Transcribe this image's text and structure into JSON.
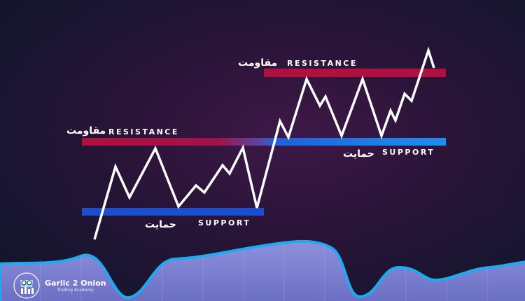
{
  "labels": {
    "resistance_left": "RESISTANCE",
    "resistance_left_ar": "مقاومت",
    "support_left": "SUPPORT",
    "support_left_ar": "حمایت",
    "resistance_right": "RESISTANCE",
    "resistance_right_ar": "مقاومت",
    "support_right": "SUPPORT",
    "support_right_ar": "حمایت"
  },
  "logo": {
    "name": "Garlic 2 Onion",
    "tagline": "Trading Academy"
  },
  "colors": {
    "resistance": "#b0103f",
    "support": "#1a4fd0",
    "support_right": "#1e88e8",
    "line": "#ffffff",
    "wave_stroke": "#1fa9ef",
    "wave_fill": "#7b80d0"
  }
}
